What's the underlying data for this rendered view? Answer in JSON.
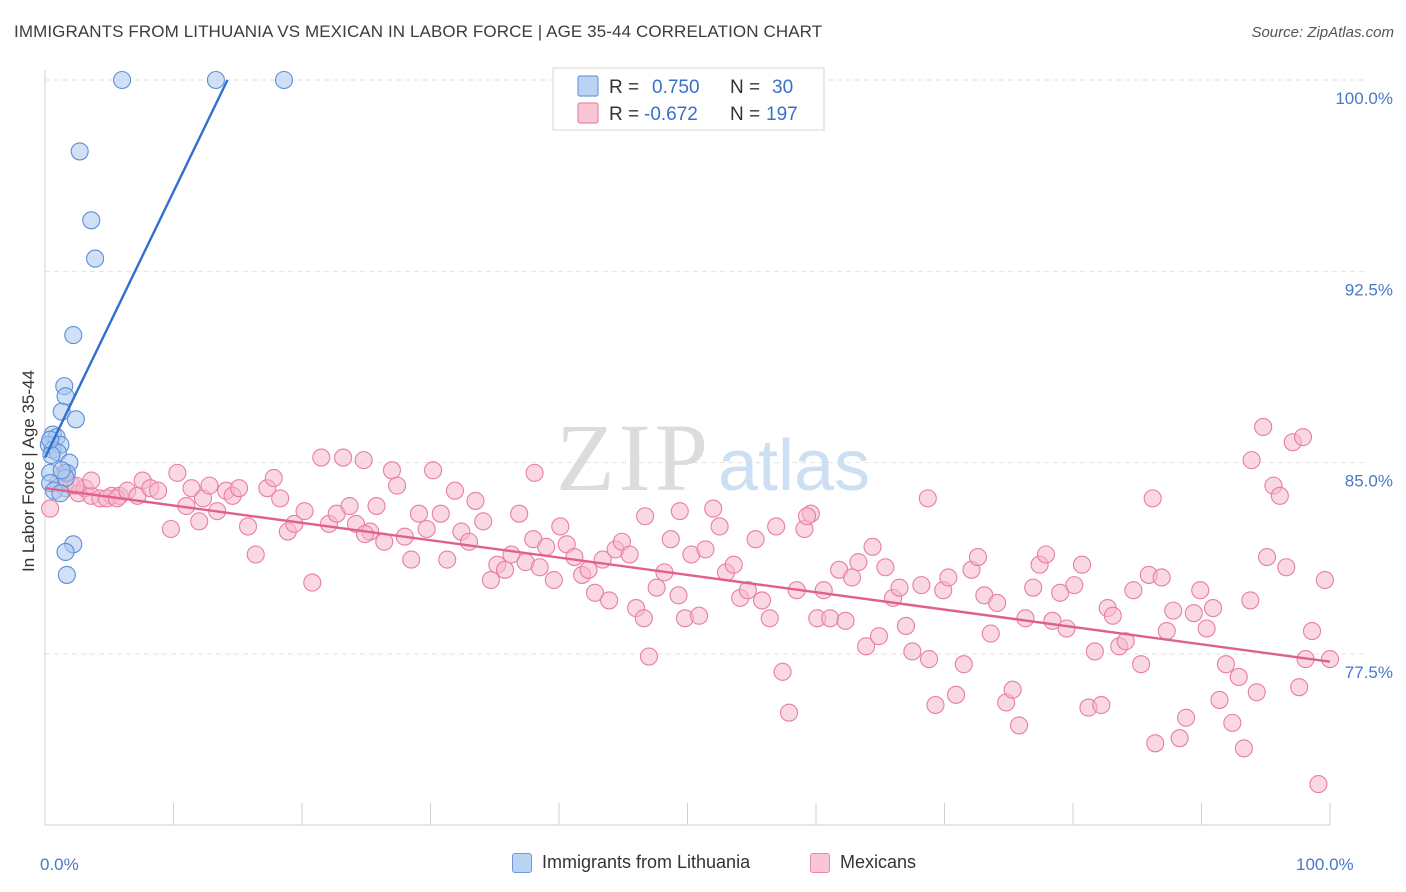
{
  "chart_data": {
    "type": "scatter",
    "title": "IMMIGRANTS FROM LITHUANIA VS MEXICAN IN LABOR FORCE | AGE 35-44 CORRELATION CHART",
    "source": "Source: ZipAtlas.com",
    "ylabel": "In Labor Force | Age 35-44",
    "xlim": [
      0,
      100
    ],
    "ylim": [
      71.0,
      101.0
    ],
    "x_tick_labels": {
      "left": "0.0%",
      "right": "100.0%"
    },
    "y_ticks": [
      {
        "value": 100.0,
        "label": "100.0%"
      },
      {
        "value": 92.5,
        "label": "92.5%"
      },
      {
        "value": 85.0,
        "label": "85.0%"
      },
      {
        "value": 77.5,
        "label": "77.5%"
      }
    ],
    "legend": [
      {
        "r_label": "R =",
        "r_value": "0.750",
        "n_label": "N =",
        "n_value": "30"
      },
      {
        "r_label": "R =",
        "r_value": "-0.672",
        "n_label": "N =",
        "n_value": "197"
      }
    ],
    "watermark": {
      "zip": "ZIP",
      "atlas": "atlas"
    },
    "colors": {
      "blue_fill": "#a9c8f0",
      "blue_stroke": "#5b8fd6",
      "blue_line": "#2f6fd0",
      "pink_fill": "#f6b8cc",
      "pink_stroke": "#e87ea0",
      "pink_line": "#e0608c",
      "tick_text": "#4a78c8",
      "grid": "#e2e2e2"
    },
    "series": [
      {
        "name": "Immigrants from Lithuania",
        "trend": {
          "x0": 0.0,
          "y0": 85.2,
          "x1": 14.2,
          "y1": 100.0
        },
        "points": [
          [
            6.0,
            100.0
          ],
          [
            13.3,
            100.0
          ],
          [
            18.6,
            100.0
          ],
          [
            2.7,
            97.2
          ],
          [
            3.6,
            94.5
          ],
          [
            3.9,
            93.0
          ],
          [
            2.2,
            90.0
          ],
          [
            1.5,
            88.0
          ],
          [
            1.6,
            87.6
          ],
          [
            1.3,
            87.0
          ],
          [
            2.4,
            86.7
          ],
          [
            0.6,
            86.1
          ],
          [
            0.9,
            86.0
          ],
          [
            0.3,
            85.7
          ],
          [
            1.2,
            85.7
          ],
          [
            0.6,
            85.5
          ],
          [
            1.0,
            85.4
          ],
          [
            0.5,
            85.3
          ],
          [
            1.9,
            85.0
          ],
          [
            1.7,
            84.6
          ],
          [
            0.4,
            84.6
          ],
          [
            1.6,
            84.4
          ],
          [
            0.4,
            84.2
          ],
          [
            0.7,
            83.9
          ],
          [
            1.2,
            83.8
          ],
          [
            2.2,
            81.8
          ],
          [
            1.6,
            81.5
          ],
          [
            1.7,
            80.6
          ],
          [
            0.4,
            85.9
          ],
          [
            1.3,
            84.7
          ]
        ]
      },
      {
        "name": "Mexicans",
        "trend": {
          "x0": 0.0,
          "y0": 84.0,
          "x1": 100.0,
          "y1": 77.2
        },
        "points": [
          [
            0.4,
            83.2
          ],
          [
            1.0,
            84.2
          ],
          [
            1.6,
            84.0
          ],
          [
            2.1,
            84.1
          ],
          [
            2.6,
            83.8
          ],
          [
            3.1,
            84.0
          ],
          [
            3.6,
            83.7
          ],
          [
            4.3,
            83.6
          ],
          [
            5.2,
            83.7
          ],
          [
            5.8,
            83.7
          ],
          [
            1.5,
            84.6
          ],
          [
            2.4,
            84.1
          ],
          [
            3.6,
            84.3
          ],
          [
            4.8,
            83.6
          ],
          [
            5.6,
            83.6
          ],
          [
            6.4,
            83.9
          ],
          [
            7.2,
            83.7
          ],
          [
            7.6,
            84.3
          ],
          [
            8.2,
            84.0
          ],
          [
            8.8,
            83.9
          ],
          [
            9.8,
            82.4
          ],
          [
            10.3,
            84.6
          ],
          [
            11.0,
            83.3
          ],
          [
            11.4,
            84.0
          ],
          [
            12.0,
            82.7
          ],
          [
            12.3,
            83.6
          ],
          [
            12.8,
            84.1
          ],
          [
            13.4,
            83.1
          ],
          [
            14.1,
            83.9
          ],
          [
            14.6,
            83.7
          ],
          [
            15.1,
            84.0
          ],
          [
            15.8,
            82.5
          ],
          [
            16.4,
            81.4
          ],
          [
            17.3,
            84.0
          ],
          [
            17.8,
            84.4
          ],
          [
            18.3,
            83.6
          ],
          [
            18.9,
            82.3
          ],
          [
            19.4,
            82.6
          ],
          [
            20.2,
            83.1
          ],
          [
            20.8,
            80.3
          ],
          [
            21.5,
            85.2
          ],
          [
            22.1,
            82.6
          ],
          [
            22.7,
            83.0
          ],
          [
            23.2,
            85.2
          ],
          [
            23.7,
            83.3
          ],
          [
            24.2,
            82.6
          ],
          [
            24.8,
            85.1
          ],
          [
            25.3,
            82.3
          ],
          [
            25.8,
            83.3
          ],
          [
            26.4,
            81.9
          ],
          [
            27.0,
            84.7
          ],
          [
            27.4,
            84.1
          ],
          [
            28.0,
            82.1
          ],
          [
            28.5,
            81.2
          ],
          [
            29.1,
            83.0
          ],
          [
            29.7,
            82.4
          ],
          [
            30.2,
            84.7
          ],
          [
            30.8,
            83.0
          ],
          [
            31.3,
            81.2
          ],
          [
            31.9,
            83.9
          ],
          [
            32.4,
            82.3
          ],
          [
            33.0,
            81.9
          ],
          [
            33.5,
            83.5
          ],
          [
            34.1,
            82.7
          ],
          [
            34.7,
            80.4
          ],
          [
            35.2,
            81.0
          ],
          [
            35.8,
            80.8
          ],
          [
            36.3,
            81.4
          ],
          [
            36.9,
            83.0
          ],
          [
            37.4,
            81.1
          ],
          [
            38.0,
            82.0
          ],
          [
            38.5,
            80.9
          ],
          [
            39.0,
            81.7
          ],
          [
            39.6,
            80.4
          ],
          [
            40.1,
            82.5
          ],
          [
            40.6,
            81.8
          ],
          [
            41.2,
            81.3
          ],
          [
            41.8,
            80.6
          ],
          [
            42.3,
            80.8
          ],
          [
            42.8,
            79.9
          ],
          [
            43.4,
            81.2
          ],
          [
            43.9,
            79.6
          ],
          [
            44.4,
            81.6
          ],
          [
            44.9,
            81.9
          ],
          [
            45.5,
            81.4
          ],
          [
            46.0,
            79.3
          ],
          [
            46.6,
            78.9
          ],
          [
            47.0,
            77.4
          ],
          [
            47.6,
            80.1
          ],
          [
            48.2,
            80.7
          ],
          [
            48.7,
            82.0
          ],
          [
            49.3,
            79.8
          ],
          [
            49.8,
            78.9
          ],
          [
            50.3,
            81.4
          ],
          [
            50.9,
            79.0
          ],
          [
            51.4,
            81.6
          ],
          [
            52.0,
            83.2
          ],
          [
            52.5,
            82.5
          ],
          [
            53.0,
            80.7
          ],
          [
            53.6,
            81.0
          ],
          [
            54.1,
            79.7
          ],
          [
            54.7,
            80.0
          ],
          [
            55.3,
            82.0
          ],
          [
            55.8,
            79.6
          ],
          [
            56.4,
            78.9
          ],
          [
            56.9,
            82.5
          ],
          [
            57.4,
            76.8
          ],
          [
            57.9,
            75.2
          ],
          [
            58.5,
            80.0
          ],
          [
            59.1,
            82.4
          ],
          [
            59.6,
            83.0
          ],
          [
            60.1,
            78.9
          ],
          [
            60.6,
            80.0
          ],
          [
            61.1,
            78.9
          ],
          [
            61.8,
            80.8
          ],
          [
            62.3,
            78.8
          ],
          [
            62.8,
            80.5
          ],
          [
            63.3,
            81.1
          ],
          [
            63.9,
            77.8
          ],
          [
            64.4,
            81.7
          ],
          [
            64.9,
            78.2
          ],
          [
            65.4,
            80.9
          ],
          [
            66.0,
            79.7
          ],
          [
            66.5,
            80.1
          ],
          [
            67.0,
            78.6
          ],
          [
            67.5,
            77.6
          ],
          [
            68.2,
            80.2
          ],
          [
            68.8,
            77.3
          ],
          [
            69.3,
            75.5
          ],
          [
            69.9,
            80.0
          ],
          [
            70.3,
            80.5
          ],
          [
            70.9,
            75.9
          ],
          [
            71.5,
            77.1
          ],
          [
            72.1,
            80.8
          ],
          [
            72.6,
            81.3
          ],
          [
            73.1,
            79.8
          ],
          [
            73.6,
            78.3
          ],
          [
            74.1,
            79.5
          ],
          [
            74.8,
            75.6
          ],
          [
            75.3,
            76.1
          ],
          [
            75.8,
            74.7
          ],
          [
            76.3,
            78.9
          ],
          [
            76.9,
            80.1
          ],
          [
            77.4,
            81.0
          ],
          [
            77.9,
            81.4
          ],
          [
            78.4,
            78.8
          ],
          [
            79.0,
            79.9
          ],
          [
            79.5,
            78.5
          ],
          [
            80.1,
            80.2
          ],
          [
            80.7,
            81.0
          ],
          [
            81.2,
            75.4
          ],
          [
            81.7,
            77.6
          ],
          [
            82.2,
            75.5
          ],
          [
            82.7,
            79.3
          ],
          [
            83.1,
            79.0
          ],
          [
            83.6,
            77.8
          ],
          [
            84.1,
            78.0
          ],
          [
            84.7,
            80.0
          ],
          [
            85.3,
            77.1
          ],
          [
            85.9,
            80.6
          ],
          [
            86.4,
            74.0
          ],
          [
            86.9,
            80.5
          ],
          [
            87.3,
            78.4
          ],
          [
            87.8,
            79.2
          ],
          [
            88.3,
            74.2
          ],
          [
            88.8,
            75.0
          ],
          [
            89.4,
            79.1
          ],
          [
            89.9,
            80.0
          ],
          [
            90.4,
            78.5
          ],
          [
            90.9,
            79.3
          ],
          [
            91.4,
            75.7
          ],
          [
            91.9,
            77.1
          ],
          [
            92.4,
            74.8
          ],
          [
            92.9,
            76.6
          ],
          [
            93.3,
            73.8
          ],
          [
            93.8,
            79.6
          ],
          [
            94.3,
            76.0
          ],
          [
            95.1,
            81.3
          ],
          [
            95.6,
            84.1
          ],
          [
            96.1,
            83.7
          ],
          [
            96.6,
            80.9
          ],
          [
            97.1,
            85.8
          ],
          [
            97.6,
            76.2
          ],
          [
            98.1,
            77.3
          ],
          [
            98.6,
            78.4
          ],
          [
            99.1,
            72.4
          ],
          [
            99.6,
            80.4
          ],
          [
            100.0,
            77.3
          ],
          [
            93.9,
            85.1
          ],
          [
            94.8,
            86.4
          ],
          [
            97.9,
            86.0
          ],
          [
            86.2,
            83.6
          ],
          [
            68.7,
            83.6
          ],
          [
            59.3,
            82.9
          ],
          [
            49.4,
            83.1
          ],
          [
            46.7,
            82.9
          ],
          [
            38.1,
            84.6
          ],
          [
            24.9,
            82.2
          ]
        ]
      }
    ]
  },
  "bottom_legend": [
    {
      "label": "Immigrants from Lithuania"
    },
    {
      "label": "Mexicans"
    }
  ]
}
